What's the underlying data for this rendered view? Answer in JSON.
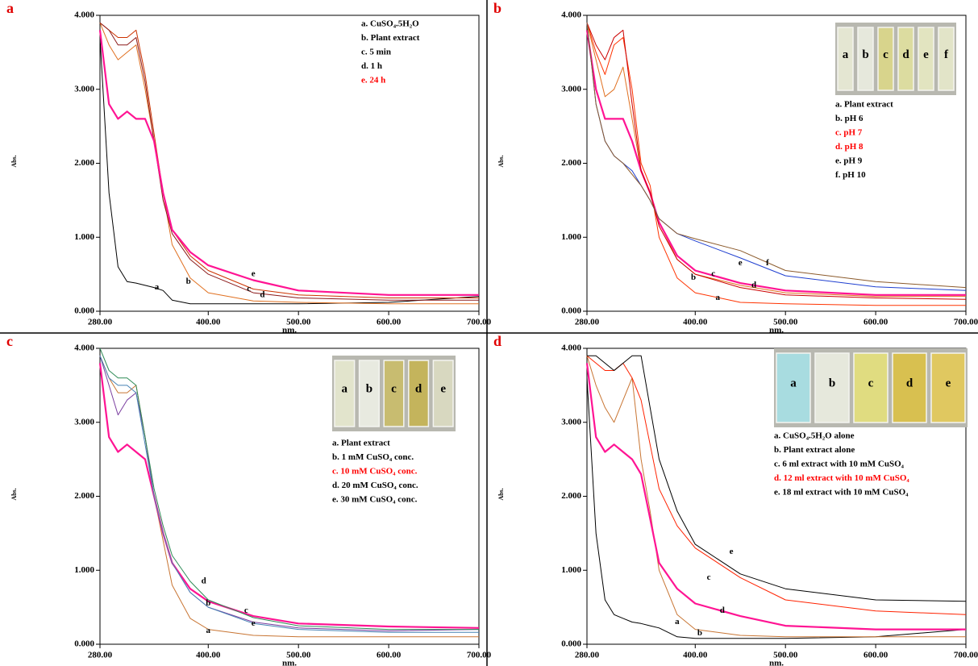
{
  "chart_data": [
    {
      "type": "line",
      "panel_label": "a",
      "x_label": "nm.",
      "y_label": "Abs.",
      "x": [
        280,
        290,
        300,
        310,
        320,
        330,
        340,
        350,
        360,
        380,
        400,
        450,
        500,
        600,
        700
      ],
      "xlim": [
        280,
        700
      ],
      "ylim": [
        0,
        4
      ],
      "xticks": [
        {
          "value": 280,
          "label": "280.00"
        },
        {
          "value": 400,
          "label": "400.00"
        },
        {
          "value": 500,
          "label": "500.00"
        },
        {
          "value": 600,
          "label": "600.00"
        },
        {
          "value": 700,
          "label": "700.00"
        }
      ],
      "yticks": [
        {
          "value": 0,
          "label": "0.000"
        },
        {
          "value": 1,
          "label": "1.000"
        },
        {
          "value": 2,
          "label": "2.000"
        },
        {
          "value": 3,
          "label": "3.000"
        },
        {
          "value": 4,
          "label": "4.000"
        }
      ],
      "series": [
        {
          "name": "a. CuSO₄.5H₂O",
          "color": "#000000",
          "legend_color": "#000000",
          "line_width": 1,
          "values": [
            3.7,
            1.6,
            0.6,
            0.4,
            0.38,
            0.35,
            0.32,
            0.28,
            0.15,
            0.1,
            0.1,
            0.1,
            0.1,
            0.12,
            0.2
          ]
        },
        {
          "name": "b. Plant extract",
          "color": "#e07020",
          "legend_color": "#000000",
          "line_width": 1,
          "values": [
            3.9,
            3.6,
            3.4,
            3.5,
            3.6,
            3.0,
            2.3,
            1.6,
            0.9,
            0.45,
            0.25,
            0.14,
            0.12,
            0.1,
            0.1
          ]
        },
        {
          "name": "c. 5 min",
          "color": "#cc3300",
          "legend_color": "#000000",
          "line_width": 1,
          "values": [
            3.9,
            3.8,
            3.7,
            3.7,
            3.8,
            3.2,
            2.4,
            1.6,
            1.1,
            0.75,
            0.55,
            0.3,
            0.22,
            0.18,
            0.18
          ]
        },
        {
          "name": "d. 1 h",
          "color": "#8b1a1a",
          "legend_color": "#000000",
          "line_width": 1,
          "values": [
            3.9,
            3.8,
            3.6,
            3.6,
            3.7,
            3.1,
            2.3,
            1.5,
            1.05,
            0.7,
            0.5,
            0.25,
            0.18,
            0.15,
            0.15
          ]
        },
        {
          "name": "e. 24 h",
          "color": "#ff1493",
          "legend_color": "#ff0000",
          "line_width": 2.2,
          "values": [
            3.8,
            2.8,
            2.6,
            2.7,
            2.6,
            2.6,
            2.3,
            1.6,
            1.1,
            0.8,
            0.62,
            0.42,
            0.28,
            0.22,
            0.22
          ]
        }
      ],
      "annotations": [
        {
          "text": "a",
          "x": 343,
          "y": 0.32
        },
        {
          "text": "b",
          "x": 378,
          "y": 0.4
        },
        {
          "text": "c",
          "x": 445,
          "y": 0.3
        },
        {
          "text": "d",
          "x": 460,
          "y": 0.22
        },
        {
          "text": "e",
          "x": 450,
          "y": 0.5
        }
      ]
    },
    {
      "type": "line",
      "panel_label": "b",
      "x_label": "nm.",
      "y_label": "Abs.",
      "x": [
        280,
        290,
        300,
        310,
        320,
        330,
        340,
        350,
        360,
        380,
        400,
        450,
        500,
        600,
        700
      ],
      "xlim": [
        280,
        700
      ],
      "ylim": [
        0,
        4
      ],
      "xticks": [
        {
          "value": 280,
          "label": "280.00"
        },
        {
          "value": 400,
          "label": "400.00"
        },
        {
          "value": 500,
          "label": "500.00"
        },
        {
          "value": 600,
          "label": "600.00"
        },
        {
          "value": 700,
          "label": "700.00"
        }
      ],
      "yticks": [
        {
          "value": 0,
          "label": "0.000"
        },
        {
          "value": 1,
          "label": "1.000"
        },
        {
          "value": 2,
          "label": "2.000"
        },
        {
          "value": 3,
          "label": "3.000"
        },
        {
          "value": 4,
          "label": "4.000"
        }
      ],
      "series": [
        {
          "name": "a. Plant extract",
          "color": "#ff3300",
          "legend_color": "#000000",
          "line_width": 1,
          "values": [
            3.9,
            3.5,
            3.2,
            3.6,
            3.7,
            3.0,
            2.0,
            1.7,
            1.0,
            0.45,
            0.25,
            0.12,
            0.1,
            0.08,
            0.08
          ]
        },
        {
          "name": "b. pH 6",
          "color": "#e07020",
          "legend_color": "#000000",
          "line_width": 1,
          "values": [
            3.9,
            3.4,
            2.9,
            3.0,
            3.3,
            2.6,
            1.9,
            1.6,
            1.2,
            0.7,
            0.5,
            0.35,
            0.25,
            0.2,
            0.2
          ]
        },
        {
          "name": "c. pH 7",
          "color": "#ff1493",
          "legend_color": "#ff0000",
          "line_width": 2.2,
          "values": [
            3.8,
            3.0,
            2.6,
            2.6,
            2.6,
            2.3,
            1.9,
            1.6,
            1.2,
            0.75,
            0.55,
            0.38,
            0.28,
            0.22,
            0.22
          ]
        },
        {
          "name": "d. pH 8",
          "color": "#cc0000",
          "legend_color": "#ff0000",
          "line_width": 1,
          "values": [
            3.9,
            3.6,
            3.4,
            3.7,
            3.8,
            2.8,
            1.9,
            1.6,
            1.15,
            0.7,
            0.5,
            0.32,
            0.22,
            0.18,
            0.16
          ]
        },
        {
          "name": "e. pH 9",
          "color": "#1f3fd0",
          "legend_color": "#000000",
          "line_width": 1,
          "values": [
            3.9,
            2.8,
            2.3,
            2.1,
            2.0,
            1.9,
            1.7,
            1.5,
            1.25,
            1.05,
            0.95,
            0.72,
            0.48,
            0.33,
            0.28
          ]
        },
        {
          "name": "f. pH 10",
          "color": "#8b5a2b",
          "legend_color": "#000000",
          "line_width": 1,
          "values": [
            3.9,
            2.8,
            2.3,
            2.1,
            2.0,
            1.85,
            1.7,
            1.5,
            1.25,
            1.05,
            0.98,
            0.82,
            0.55,
            0.4,
            0.32
          ]
        }
      ],
      "annotations": [
        {
          "text": "a",
          "x": 425,
          "y": 0.18
        },
        {
          "text": "b",
          "x": 398,
          "y": 0.45
        },
        {
          "text": "c",
          "x": 420,
          "y": 0.5
        },
        {
          "text": "d",
          "x": 465,
          "y": 0.35
        },
        {
          "text": "e",
          "x": 450,
          "y": 0.65
        },
        {
          "text": "f",
          "x": 480,
          "y": 0.65
        }
      ],
      "photo": {
        "labels": [
          "a",
          "b",
          "c",
          "d",
          "e",
          "f"
        ],
        "colors": [
          "#e4e6d2",
          "#e6e8dc",
          "#d8d48c",
          "#dcdca0",
          "#e2e4c0",
          "#e2e4c8"
        ]
      }
    },
    {
      "type": "line",
      "panel_label": "c",
      "x_label": "nm.",
      "y_label": "Abs.",
      "x": [
        280,
        290,
        300,
        310,
        320,
        330,
        340,
        350,
        360,
        380,
        400,
        450,
        500,
        600,
        700
      ],
      "xlim": [
        280,
        700
      ],
      "ylim": [
        0,
        4
      ],
      "xticks": [
        {
          "value": 280,
          "label": "280.00"
        },
        {
          "value": 400,
          "label": "400.00"
        },
        {
          "value": 500,
          "label": "500.00"
        },
        {
          "value": 600,
          "label": "600.00"
        },
        {
          "value": 700,
          "label": "700.00"
        }
      ],
      "yticks": [
        {
          "value": 0,
          "label": "0.000"
        },
        {
          "value": 1,
          "label": "1.000"
        },
        {
          "value": 2,
          "label": "2.000"
        },
        {
          "value": 3,
          "label": "3.000"
        },
        {
          "value": 4,
          "label": "4.000"
        }
      ],
      "series": [
        {
          "name": "a. Plant extract",
          "color": "#c87533",
          "legend_color": "#000000",
          "line_width": 1,
          "values": [
            3.9,
            3.6,
            3.4,
            3.4,
            3.5,
            2.8,
            2.0,
            1.4,
            0.8,
            0.35,
            0.2,
            0.12,
            0.1,
            0.1,
            0.1
          ]
        },
        {
          "name": "b. 1 mM CuSO₄ conc.",
          "color": "#7b3fa0",
          "legend_color": "#000000",
          "line_width": 1,
          "values": [
            3.9,
            3.5,
            3.1,
            3.3,
            3.4,
            2.8,
            2.0,
            1.5,
            1.1,
            0.7,
            0.5,
            0.3,
            0.22,
            0.18,
            0.2
          ]
        },
        {
          "name": "c. 10 mM CuSO₄ conc.",
          "color": "#ff1493",
          "legend_color": "#ff0000",
          "line_width": 2.2,
          "values": [
            3.8,
            2.8,
            2.6,
            2.7,
            2.6,
            2.5,
            2.0,
            1.5,
            1.1,
            0.75,
            0.58,
            0.38,
            0.28,
            0.24,
            0.22
          ]
        },
        {
          "name": "d. 20 mM CuSO₄ conc.",
          "color": "#2e8b57",
          "legend_color": "#000000",
          "line_width": 1,
          "values": [
            4.0,
            3.7,
            3.6,
            3.6,
            3.5,
            2.8,
            2.1,
            1.6,
            1.2,
            0.85,
            0.6,
            0.36,
            0.25,
            0.2,
            0.2
          ]
        },
        {
          "name": "e. 30 mM CuSO₄ conc.",
          "color": "#4682b4",
          "legend_color": "#000000",
          "line_width": 1,
          "values": [
            3.9,
            3.6,
            3.5,
            3.5,
            3.4,
            2.7,
            2.0,
            1.5,
            1.1,
            0.7,
            0.5,
            0.28,
            0.2,
            0.16,
            0.16
          ]
        }
      ],
      "annotations": [
        {
          "text": "a",
          "x": 400,
          "y": 0.18
        },
        {
          "text": "b",
          "x": 400,
          "y": 0.55
        },
        {
          "text": "c",
          "x": 442,
          "y": 0.45
        },
        {
          "text": "d",
          "x": 395,
          "y": 0.85
        },
        {
          "text": "e",
          "x": 450,
          "y": 0.28
        }
      ],
      "photo": {
        "labels": [
          "a",
          "b",
          "c",
          "d",
          "e"
        ],
        "colors": [
          "#e2e4cc",
          "#e8eae0",
          "#c8bc70",
          "#c4b45c",
          "#d8d8c0"
        ]
      }
    },
    {
      "type": "line",
      "panel_label": "d",
      "x_label": "nm.",
      "y_label": "Abs.",
      "x": [
        280,
        290,
        300,
        310,
        320,
        330,
        340,
        350,
        360,
        380,
        400,
        450,
        500,
        600,
        700
      ],
      "xlim": [
        280,
        700
      ],
      "ylim": [
        0,
        4
      ],
      "xticks": [
        {
          "value": 280,
          "label": "280.00"
        },
        {
          "value": 400,
          "label": "400.00"
        },
        {
          "value": 500,
          "label": "500.00"
        },
        {
          "value": 600,
          "label": "600.00"
        },
        {
          "value": 700,
          "label": "700.00"
        }
      ],
      "yticks": [
        {
          "value": 0,
          "label": "0.000"
        },
        {
          "value": 1,
          "label": "1.000"
        },
        {
          "value": 2,
          "label": "2.000"
        },
        {
          "value": 3,
          "label": "3.000"
        },
        {
          "value": 4,
          "label": "4.000"
        }
      ],
      "series": [
        {
          "name": "a. CuSO₄.5H₂O alone",
          "color": "#000000",
          "legend_color": "#000000",
          "line_width": 1,
          "values": [
            3.6,
            1.5,
            0.6,
            0.4,
            0.35,
            0.3,
            0.28,
            0.25,
            0.22,
            0.1,
            0.08,
            0.08,
            0.08,
            0.1,
            0.2
          ]
        },
        {
          "name": "b.  Plant extract alone",
          "color": "#c87533",
          "legend_color": "#000000",
          "line_width": 1,
          "values": [
            3.9,
            3.5,
            3.2,
            3.0,
            3.3,
            3.6,
            2.5,
            1.8,
            1.0,
            0.4,
            0.2,
            0.12,
            0.1,
            0.1,
            0.1
          ]
        },
        {
          "name": "c.  6 ml extract with 10 mM CuSO₄",
          "color": "#ff2200",
          "legend_color": "#000000",
          "line_width": 1,
          "values": [
            3.9,
            3.8,
            3.7,
            3.7,
            3.8,
            3.6,
            3.3,
            2.7,
            2.1,
            1.6,
            1.3,
            0.9,
            0.6,
            0.45,
            0.4
          ]
        },
        {
          "name": "d. 12 ml extract with 10 mM CuSO₄",
          "color": "#ff1493",
          "legend_color": "#ff0000",
          "line_width": 2.2,
          "values": [
            3.8,
            2.8,
            2.6,
            2.7,
            2.6,
            2.5,
            2.3,
            1.7,
            1.1,
            0.75,
            0.55,
            0.38,
            0.25,
            0.2,
            0.2
          ]
        },
        {
          "name": "e. 18 ml extract with 10 mM CuSO₄",
          "color": "#000000",
          "legend_color": "#000000",
          "line_width": 1,
          "values": [
            3.9,
            3.9,
            3.8,
            3.7,
            3.8,
            3.9,
            3.9,
            3.2,
            2.5,
            1.8,
            1.35,
            0.95,
            0.75,
            0.6,
            0.58
          ]
        }
      ],
      "annotations": [
        {
          "text": "a",
          "x": 380,
          "y": 0.3
        },
        {
          "text": "b",
          "x": 405,
          "y": 0.15
        },
        {
          "text": "c",
          "x": 415,
          "y": 0.9
        },
        {
          "text": "d",
          "x": 430,
          "y": 0.45
        },
        {
          "text": "e",
          "x": 440,
          "y": 1.25
        }
      ],
      "photo": {
        "labels": [
          "a",
          "b",
          "c",
          "d",
          "e"
        ],
        "colors": [
          "#a8dce0",
          "#e6e8dc",
          "#e0dc80",
          "#d8c050",
          "#e0c860"
        ]
      }
    }
  ]
}
